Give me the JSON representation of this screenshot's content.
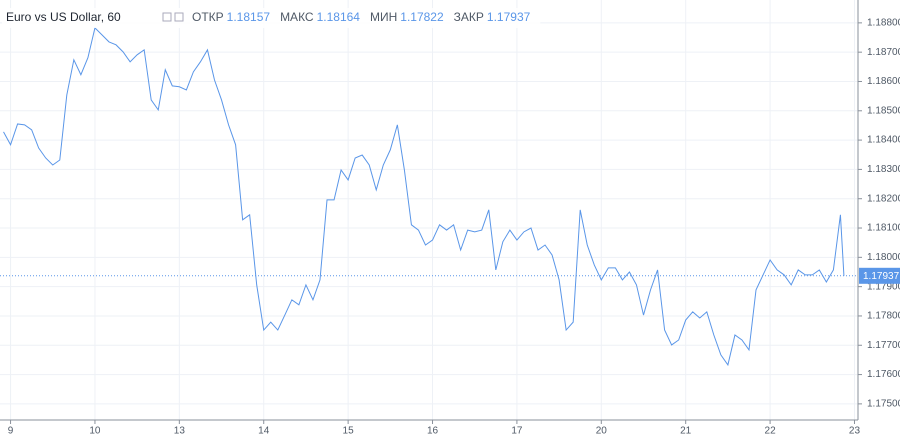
{
  "chart_data": {
    "type": "line",
    "title": "Euro vs US Dollar, 60",
    "ohlc": [
      {
        "label": "ОТКР",
        "value": 1.18157
      },
      {
        "label": "МАКС",
        "value": 1.18164
      },
      {
        "label": "МИН",
        "value": 1.17822
      },
      {
        "label": "ЗАКР",
        "value": 1.17937
      }
    ],
    "x": [
      -2,
      0,
      2,
      4,
      6,
      8,
      10,
      12,
      14,
      16,
      18,
      20,
      22,
      24,
      26,
      28,
      30,
      32,
      34,
      36,
      38,
      40,
      42,
      44,
      46,
      48,
      50,
      52,
      54,
      56,
      58,
      60,
      62,
      64,
      66,
      68,
      70,
      72,
      74,
      76,
      78,
      80,
      82,
      84,
      86,
      88,
      90,
      92,
      94,
      96,
      98,
      100,
      102,
      104,
      106,
      108,
      110,
      112,
      114,
      116,
      118,
      120,
      122,
      124,
      126,
      128,
      130,
      132,
      134,
      136,
      138,
      140,
      142,
      144,
      146,
      148,
      150,
      152,
      154,
      156,
      158,
      160,
      162,
      164,
      166,
      168,
      170,
      172,
      174,
      176,
      178,
      180,
      182,
      184,
      186,
      188,
      190,
      192,
      194,
      196,
      198,
      200,
      202,
      204,
      206,
      208,
      210,
      212,
      214,
      216,
      218,
      220,
      222,
      224,
      226,
      228,
      230,
      232,
      234,
      236,
      237
    ],
    "series": [
      {
        "name": "EURUSD",
        "color": "#5a96e8",
        "values": [
          1.18428,
          1.18384,
          1.18455,
          1.18452,
          1.18435,
          1.18373,
          1.18339,
          1.18315,
          1.18332,
          1.18554,
          1.18674,
          1.18623,
          1.18681,
          1.18783,
          1.18759,
          1.18735,
          1.18725,
          1.18701,
          1.18667,
          1.18691,
          1.18708,
          1.18537,
          1.18503,
          1.1864,
          1.18585,
          1.18582,
          1.18571,
          1.18633,
          1.18667,
          1.18708,
          1.18605,
          1.18537,
          1.18452,
          1.18384,
          1.18128,
          1.18145,
          1.17906,
          1.17752,
          1.17779,
          1.17752,
          1.17803,
          1.17855,
          1.17838,
          1.17906,
          1.17855,
          1.17923,
          1.18196,
          1.18196,
          1.18298,
          1.18264,
          1.18339,
          1.18349,
          1.18315,
          1.1823,
          1.18315,
          1.18367,
          1.18452,
          1.18298,
          1.18111,
          1.18093,
          1.18042,
          1.18059,
          1.18111,
          1.18093,
          1.18111,
          1.18025,
          1.18093,
          1.18087,
          1.18093,
          1.18162,
          1.17957,
          1.18053,
          1.18093,
          1.18059,
          1.18087,
          1.181,
          1.18025,
          1.18042,
          1.18008,
          1.17923,
          1.17752,
          1.17779,
          1.18162,
          1.18042,
          1.17974,
          1.17923,
          1.17964,
          1.17964,
          1.17923,
          1.1795,
          1.17906,
          1.17803,
          1.17889,
          1.17957,
          1.17752,
          1.17701,
          1.17718,
          1.17786,
          1.17814,
          1.17793,
          1.17814,
          1.17735,
          1.17667,
          1.17633,
          1.17735,
          1.17718,
          1.17684,
          1.17889,
          1.1794,
          1.17991,
          1.17957,
          1.1794,
          1.17906,
          1.17957,
          1.1794,
          1.1794,
          1.17957,
          1.17916,
          1.17957,
          1.18145,
          1.17937
        ]
      }
    ],
    "xlim": [
      -3,
      241
    ],
    "xticks": [
      {
        "value": 0,
        "label": "9"
      },
      {
        "value": 24,
        "label": "10"
      },
      {
        "value": 48,
        "label": "13"
      },
      {
        "value": 72,
        "label": "14"
      },
      {
        "value": 96,
        "label": "15"
      },
      {
        "value": 120,
        "label": "16"
      },
      {
        "value": 144,
        "label": "17"
      },
      {
        "value": 168,
        "label": "20"
      },
      {
        "value": 192,
        "label": "21"
      },
      {
        "value": 216,
        "label": "22"
      },
      {
        "value": 240,
        "label": "23"
      }
    ],
    "ylim": [
      1.17445,
      1.18878
    ],
    "yticks": [
      {
        "value": 1.175,
        "label": "1.17500"
      },
      {
        "value": 1.176,
        "label": "1.17600"
      },
      {
        "value": 1.177,
        "label": "1.17700"
      },
      {
        "value": 1.178,
        "label": "1.17800"
      },
      {
        "value": 1.179,
        "label": "1.17900"
      },
      {
        "value": 1.18,
        "label": "1.18000"
      },
      {
        "value": 1.181,
        "label": "1.18100"
      },
      {
        "value": 1.182,
        "label": "1.18200"
      },
      {
        "value": 1.183,
        "label": "1.18300"
      },
      {
        "value": 1.184,
        "label": "1.18400"
      },
      {
        "value": 1.185,
        "label": "1.18500"
      },
      {
        "value": 1.186,
        "label": "1.18600"
      },
      {
        "value": 1.187,
        "label": "1.18700"
      },
      {
        "value": 1.188,
        "label": "1.18800"
      }
    ],
    "grid": true
  }
}
